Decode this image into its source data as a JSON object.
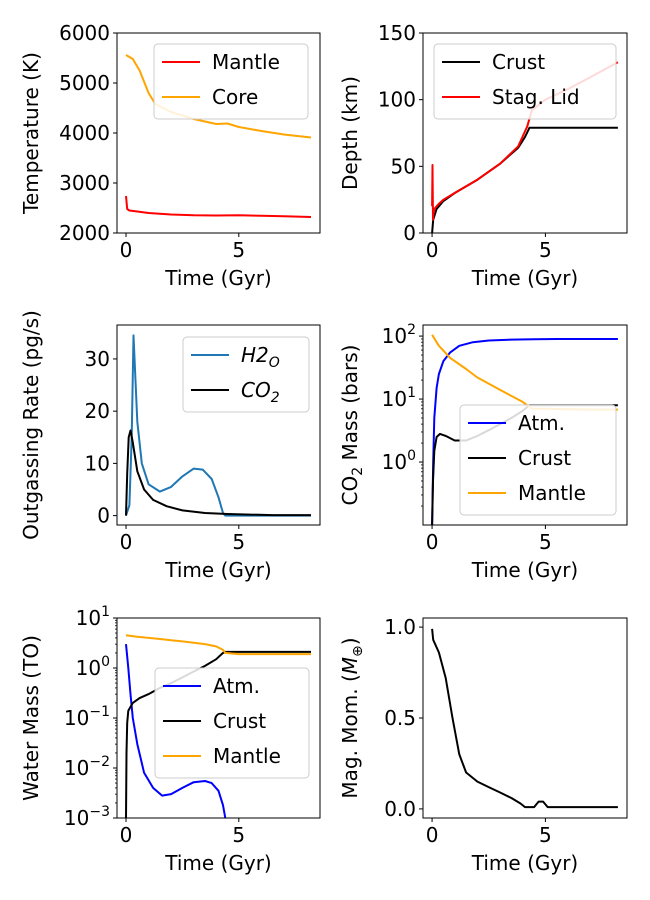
{
  "chart_data": [
    {
      "type": "line",
      "xlabel": "Time (Gyr)",
      "ylabel": "Temperature (K)",
      "xlim": [
        -0.4,
        8.6
      ],
      "ylim": [
        2000,
        6000
      ],
      "yscale": "linear",
      "xticks": [
        0,
        5
      ],
      "xtick_labels": [
        "0",
        "5"
      ],
      "yticks": [
        2000,
        3000,
        4000,
        5000,
        6000
      ],
      "ytick_labels": [
        "2000",
        "3000",
        "4000",
        "5000",
        "6000"
      ],
      "legend": "top-right",
      "series": [
        {
          "name": "Mantle",
          "color": "#ff0000",
          "x": [
            0,
            0.05,
            0.15,
            0.5,
            1,
            2,
            3,
            4,
            5,
            6,
            7,
            8.2
          ],
          "y": [
            2740,
            2480,
            2450,
            2430,
            2400,
            2370,
            2355,
            2350,
            2355,
            2345,
            2335,
            2320
          ]
        },
        {
          "name": "Core",
          "color": "#ffa500",
          "x": [
            0,
            0.3,
            0.6,
            1,
            1.3,
            2,
            3,
            4,
            4.5,
            5,
            6,
            7,
            8.2
          ],
          "y": [
            5560,
            5480,
            5250,
            4800,
            4580,
            4420,
            4280,
            4180,
            4190,
            4120,
            4040,
            3970,
            3910
          ]
        }
      ]
    },
    {
      "type": "line",
      "xlabel": "Time (Gyr)",
      "ylabel": "Depth (km)",
      "xlim": [
        -0.4,
        8.6
      ],
      "ylim": [
        0,
        150
      ],
      "yscale": "linear",
      "xticks": [
        0,
        5
      ],
      "xtick_labels": [
        "0",
        "5"
      ],
      "yticks": [
        0,
        50,
        100,
        150
      ],
      "ytick_labels": [
        "0",
        "50",
        "100",
        "150"
      ],
      "legend": "top-left",
      "series": [
        {
          "name": "Crust",
          "color": "#000000",
          "x": [
            0,
            0.05,
            0.2,
            0.5,
            1,
            2,
            3,
            3.8,
            4.1,
            4.3,
            4.4,
            5,
            6,
            7,
            8.2
          ],
          "y": [
            0,
            10,
            18,
            24,
            30,
            40,
            52,
            64,
            72,
            79,
            79,
            79,
            79,
            79,
            79
          ]
        },
        {
          "name": "Stag. Lid",
          "color": "#ff0000",
          "x": [
            0,
            0.02,
            0.04,
            0.06,
            0.1,
            0.3,
            0.5,
            1,
            2,
            3,
            3.8,
            4.2,
            4.4,
            5,
            6,
            7,
            8.2
          ],
          "y": [
            20,
            51,
            10,
            14,
            18,
            22,
            25,
            30,
            40,
            52,
            65,
            80,
            92,
            100,
            108,
            117,
            128
          ]
        }
      ]
    },
    {
      "type": "line",
      "xlabel": "Time (Gyr)",
      "ylabel": "Outgassing Rate (pg/s)",
      "xlim": [
        -0.4,
        8.6
      ],
      "ylim": [
        -1.8,
        36.5
      ],
      "yscale": "linear",
      "xticks": [
        0,
        5
      ],
      "xtick_labels": [
        "0",
        "5"
      ],
      "yticks": [
        0,
        10,
        20,
        30
      ],
      "ytick_labels": [
        "0",
        "10",
        "20",
        "30"
      ],
      "legend": "top-right",
      "series": [
        {
          "name": "H2O",
          "color": "#1f77b4",
          "x": [
            0,
            0.15,
            0.25,
            0.33,
            0.4,
            0.5,
            0.7,
            1,
            1.5,
            2,
            2.5,
            3,
            3.4,
            3.8,
            4.1,
            4.3,
            4.4,
            5,
            6,
            7,
            8.2
          ],
          "y": [
            0,
            2,
            15,
            34.5,
            28,
            18,
            10,
            6,
            4.6,
            5.5,
            7.5,
            9,
            8.8,
            7,
            3.5,
            0.5,
            0,
            0,
            0,
            0,
            0
          ]
        },
        {
          "name": "CO2",
          "color": "#000000",
          "x": [
            0,
            0.05,
            0.12,
            0.2,
            0.3,
            0.5,
            0.8,
            1.2,
            1.8,
            2.5,
            3.5,
            4.5,
            5.5,
            6.5,
            8.2
          ],
          "y": [
            0,
            8,
            15,
            16.3,
            14,
            8.5,
            5,
            3,
            1.8,
            1,
            0.5,
            0.3,
            0.2,
            0.1,
            0.1
          ]
        }
      ]
    },
    {
      "type": "line",
      "xlabel": "Time (Gyr)",
      "ylabel": "CO2 Mass (bars)",
      "xlim": [
        -0.4,
        8.6
      ],
      "ylim": [
        0.1,
        150
      ],
      "yscale": "log",
      "xticks": [
        0,
        5
      ],
      "xtick_labels": [
        "0",
        "5"
      ],
      "yticks": [
        1,
        10,
        100
      ],
      "ytick_labels": [
        "10^0",
        "10^1",
        "10^2"
      ],
      "legend": "lower-right",
      "series": [
        {
          "name": "Atm.",
          "color": "#0000ff",
          "x": [
            0,
            0.05,
            0.1,
            0.2,
            0.3,
            0.5,
            0.8,
            1.2,
            1.8,
            2.5,
            3.5,
            4.5,
            5.5,
            6.5,
            8.2
          ],
          "y": [
            0.1,
            1,
            5,
            15,
            25,
            40,
            55,
            70,
            80,
            85,
            88,
            89,
            90,
            90,
            90
          ]
        },
        {
          "name": "Crust",
          "color": "#000000",
          "x": [
            0,
            0.04,
            0.1,
            0.2,
            0.35,
            0.6,
            1,
            1.5,
            2,
            2.5,
            3,
            3.5,
            4,
            4.3,
            4.4,
            5,
            6,
            7,
            8.2
          ],
          "y": [
            0.1,
            0.5,
            1.5,
            2.5,
            2.8,
            2.6,
            2.2,
            2.2,
            2.6,
            3.2,
            4,
            5,
            6.5,
            8,
            8,
            8,
            8,
            8,
            8
          ]
        },
        {
          "name": "Mantle",
          "color": "#ffa500",
          "x": [
            0,
            0.3,
            0.8,
            1.5,
            2,
            3,
            4,
            4.3,
            4.4,
            5,
            6,
            7,
            8.2
          ],
          "y": [
            105,
            70,
            45,
            30,
            22,
            14,
            9,
            7.5,
            7,
            7,
            6.9,
            6.8,
            6.8
          ]
        }
      ]
    },
    {
      "type": "line",
      "xlabel": "Time (Gyr)",
      "ylabel": "Water Mass (TO)",
      "xlim": [
        -0.4,
        8.6
      ],
      "ylim": [
        0.001,
        10
      ],
      "yscale": "log",
      "xticks": [
        0,
        5
      ],
      "xtick_labels": [
        "0",
        "5"
      ],
      "yticks": [
        0.001,
        0.01,
        0.1,
        1,
        10
      ],
      "ytick_labels": [
        "10^-3",
        "10^-2",
        "10^-1",
        "10^0",
        "10^1"
      ],
      "legend": "center-right",
      "series": [
        {
          "name": "Atm.",
          "color": "#0000ff",
          "x": [
            0,
            0.1,
            0.2,
            0.3,
            0.5,
            0.8,
            1.2,
            1.6,
            2,
            2.5,
            3,
            3.5,
            3.8,
            4.1,
            4.3,
            4.4
          ],
          "y": [
            3,
            1,
            0.3,
            0.1,
            0.03,
            0.008,
            0.004,
            0.0028,
            0.003,
            0.004,
            0.0052,
            0.0055,
            0.005,
            0.0035,
            0.0018,
            0.001
          ]
        },
        {
          "name": "Crust",
          "color": "#000000",
          "x": [
            0,
            0.02,
            0.05,
            0.1,
            0.3,
            0.6,
            1,
            1.5,
            2,
            2.5,
            3,
            3.5,
            4,
            4.3,
            4.4,
            5,
            6,
            7,
            8.2
          ],
          "y": [
            0.001,
            0.02,
            0.08,
            0.14,
            0.2,
            0.25,
            0.3,
            0.4,
            0.5,
            0.65,
            0.85,
            1.1,
            1.5,
            2,
            2.1,
            2.1,
            2.1,
            2.1,
            2.1
          ]
        },
        {
          "name": "Mantle",
          "color": "#ffa500",
          "x": [
            0,
            0.5,
            1,
            1.5,
            2,
            2.5,
            3,
            3.5,
            4,
            4.3,
            4.4,
            5,
            6,
            7,
            8.2
          ],
          "y": [
            4.5,
            4.2,
            4,
            3.8,
            3.6,
            3.4,
            3.2,
            3,
            2.7,
            2.3,
            2,
            1.9,
            1.9,
            1.9,
            1.9
          ]
        }
      ]
    },
    {
      "type": "line",
      "xlabel": "Time (Gyr)",
      "ylabel": "Mag. Mom. (M⊕)",
      "xlim": [
        -0.4,
        8.6
      ],
      "ylim": [
        -0.05,
        1.05
      ],
      "yscale": "linear",
      "xticks": [
        0,
        5
      ],
      "xtick_labels": [
        "0",
        "5"
      ],
      "yticks": [
        0,
        0.5,
        1
      ],
      "ytick_labels": [
        "0.0",
        "0.5",
        "1.0"
      ],
      "series": [
        {
          "name": "",
          "color": "#000000",
          "x": [
            0,
            0.05,
            0.3,
            0.6,
            0.9,
            1.2,
            1.5,
            2,
            2.5,
            3,
            3.5,
            3.9,
            4.1,
            4.2,
            4.5,
            4.7,
            4.9,
            5.1,
            5.3,
            6,
            7,
            8.2
          ],
          "y": [
            0.99,
            0.93,
            0.86,
            0.72,
            0.5,
            0.3,
            0.2,
            0.15,
            0.12,
            0.09,
            0.06,
            0.03,
            0.01,
            0.01,
            0.01,
            0.04,
            0.04,
            0.01,
            0.01,
            0.01,
            0.01,
            0.01
          ]
        }
      ]
    }
  ]
}
